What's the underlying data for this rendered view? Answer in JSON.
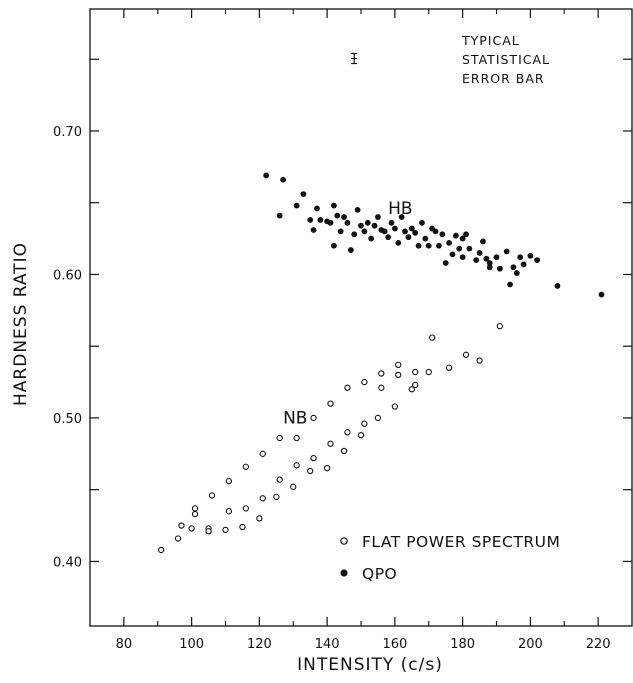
{
  "chart_data": {
    "type": "scatter",
    "xlabel": "INTENSITY (c/s)",
    "ylabel": "HARDNESS RATIO",
    "xlim": [
      70,
      230
    ],
    "ylim": [
      0.355,
      0.785
    ],
    "x_major_ticks": [
      80,
      100,
      120,
      140,
      160,
      180,
      200,
      220
    ],
    "x_minor_ticks": [
      90,
      110,
      130,
      150,
      170,
      190,
      210
    ],
    "y_labeled_ticks": [
      0.4,
      0.5,
      0.6,
      0.7
    ],
    "y_minor_ticks": [
      0.35,
      0.45,
      0.55,
      0.65,
      0.75
    ],
    "y_tick_labels": [
      "0.40",
      "0.50",
      "0.60",
      "0.70"
    ],
    "grid": false,
    "legend_position": "bottom-right",
    "annotations": {
      "error_bar_note": [
        "TYPICAL",
        "STATISTICAL",
        "ERROR BAR"
      ],
      "error_bar": {
        "x": 148,
        "y": 0.7505,
        "half_height": 0.0035
      },
      "hb_label": {
        "text": "HB",
        "x": 158,
        "y": 0.642
      },
      "nb_label": {
        "text": "NB",
        "x": 127,
        "y": 0.496
      }
    },
    "series": [
      {
        "name": "FLAT POWER SPECTRUM",
        "marker": "open-circle",
        "points": [
          [
            91,
            0.408
          ],
          [
            96,
            0.416
          ],
          [
            97,
            0.425
          ],
          [
            100,
            0.423
          ],
          [
            101,
            0.437
          ],
          [
            101,
            0.433
          ],
          [
            105,
            0.423
          ],
          [
            105,
            0.421
          ],
          [
            106,
            0.446
          ],
          [
            110,
            0.422
          ],
          [
            111,
            0.435
          ],
          [
            111,
            0.456
          ],
          [
            115,
            0.424
          ],
          [
            116,
            0.437
          ],
          [
            116,
            0.466
          ],
          [
            120,
            0.43
          ],
          [
            121,
            0.444
          ],
          [
            121,
            0.475
          ],
          [
            125,
            0.445
          ],
          [
            126,
            0.457
          ],
          [
            126,
            0.486
          ],
          [
            130,
            0.452
          ],
          [
            131,
            0.467
          ],
          [
            131,
            0.486
          ],
          [
            135,
            0.463
          ],
          [
            136,
            0.472
          ],
          [
            136,
            0.5
          ],
          [
            140,
            0.465
          ],
          [
            141,
            0.482
          ],
          [
            141,
            0.51
          ],
          [
            145,
            0.477
          ],
          [
            146,
            0.49
          ],
          [
            146,
            0.521
          ],
          [
            150,
            0.488
          ],
          [
            151,
            0.496
          ],
          [
            151,
            0.525
          ],
          [
            155,
            0.5
          ],
          [
            156,
            0.521
          ],
          [
            156,
            0.531
          ],
          [
            160,
            0.508
          ],
          [
            161,
            0.53
          ],
          [
            161,
            0.537
          ],
          [
            165,
            0.52
          ],
          [
            166,
            0.523
          ],
          [
            166,
            0.532
          ],
          [
            170,
            0.532
          ],
          [
            171,
            0.556
          ],
          [
            176,
            0.535
          ],
          [
            181,
            0.544
          ],
          [
            185,
            0.54
          ],
          [
            191,
            0.564
          ]
        ]
      },
      {
        "name": "QPO",
        "marker": "filled-circle",
        "points": [
          [
            122,
            0.669
          ],
          [
            126,
            0.641
          ],
          [
            127,
            0.666
          ],
          [
            131,
            0.648
          ],
          [
            133,
            0.656
          ],
          [
            135,
            0.638
          ],
          [
            136,
            0.631
          ],
          [
            137,
            0.646
          ],
          [
            138,
            0.638
          ],
          [
            140,
            0.637
          ],
          [
            141,
            0.636
          ],
          [
            142,
            0.648
          ],
          [
            142,
            0.62
          ],
          [
            143,
            0.641
          ],
          [
            144,
            0.63
          ],
          [
            145,
            0.64
          ],
          [
            146,
            0.636
          ],
          [
            147,
            0.617
          ],
          [
            148,
            0.628
          ],
          [
            149,
            0.645
          ],
          [
            150,
            0.634
          ],
          [
            151,
            0.63
          ],
          [
            152,
            0.636
          ],
          [
            153,
            0.625
          ],
          [
            154,
            0.634
          ],
          [
            155,
            0.64
          ],
          [
            156,
            0.631
          ],
          [
            157,
            0.63
          ],
          [
            158,
            0.626
          ],
          [
            159,
            0.636
          ],
          [
            160,
            0.632
          ],
          [
            161,
            0.622
          ],
          [
            162,
            0.64
          ],
          [
            163,
            0.63
          ],
          [
            164,
            0.626
          ],
          [
            165,
            0.632
          ],
          [
            166,
            0.629
          ],
          [
            167,
            0.62
          ],
          [
            168,
            0.636
          ],
          [
            169,
            0.625
          ],
          [
            170,
            0.62
          ],
          [
            171,
            0.632
          ],
          [
            172,
            0.63
          ],
          [
            173,
            0.62
          ],
          [
            174,
            0.628
          ],
          [
            175,
            0.608
          ],
          [
            176,
            0.622
          ],
          [
            177,
            0.614
          ],
          [
            178,
            0.627
          ],
          [
            179,
            0.618
          ],
          [
            180,
            0.625
          ],
          [
            180,
            0.612
          ],
          [
            181,
            0.628
          ],
          [
            182,
            0.618
          ],
          [
            184,
            0.61
          ],
          [
            185,
            0.615
          ],
          [
            186,
            0.623
          ],
          [
            187,
            0.611
          ],
          [
            188,
            0.605
          ],
          [
            188,
            0.608
          ],
          [
            190,
            0.612
          ],
          [
            191,
            0.604
          ],
          [
            193,
            0.616
          ],
          [
            194,
            0.593
          ],
          [
            195,
            0.605
          ],
          [
            196,
            0.601
          ],
          [
            197,
            0.612
          ],
          [
            198,
            0.607
          ],
          [
            200,
            0.613
          ],
          [
            202,
            0.61
          ],
          [
            208,
            0.592
          ],
          [
            221,
            0.586
          ]
        ]
      }
    ]
  }
}
